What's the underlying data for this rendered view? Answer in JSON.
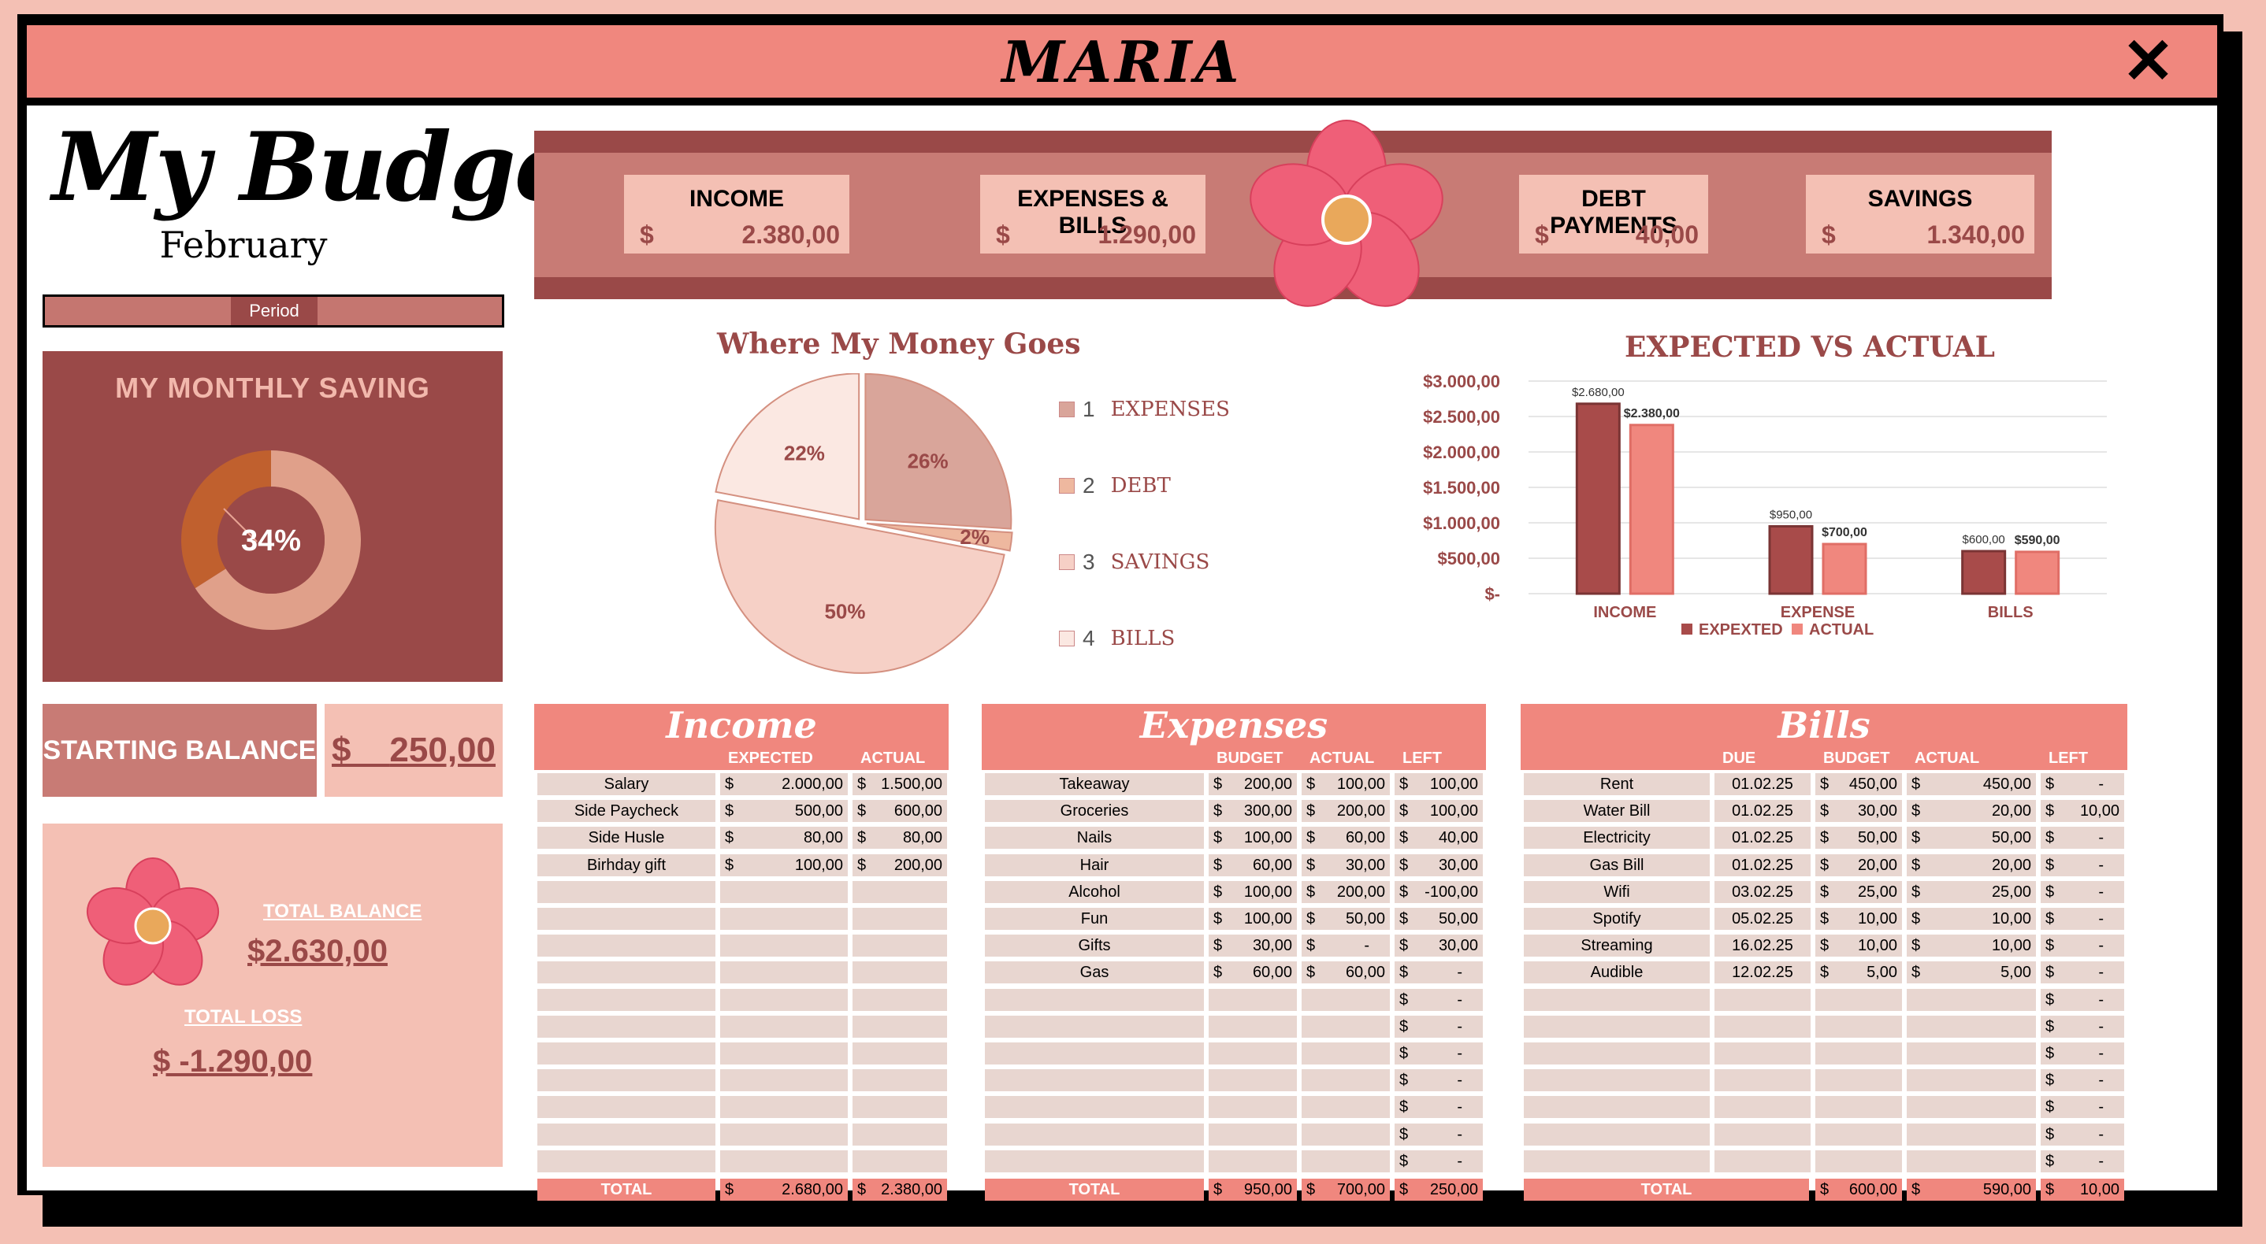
{
  "window": {
    "title": "MARIA",
    "close": "✕"
  },
  "header": {
    "title": "My Budget",
    "month": "February",
    "period_label": "Period"
  },
  "monthly_saving": {
    "title": "MY MONTHLY SAVING",
    "percent": "34%",
    "fraction": 0.34
  },
  "starting_balance": {
    "label": "STARTING BALANCE",
    "currency": "$",
    "value": "250,00"
  },
  "totals": {
    "balance_label": "TOTAL BALANCE",
    "balance_value": "$2.630,00",
    "loss_label": "TOTAL LOSS",
    "loss_value": "$ -1.290,00"
  },
  "kpis": [
    {
      "label": "INCOME",
      "currency": "$",
      "value": "2.380,00"
    },
    {
      "label": "EXPENSES & BILLS",
      "currency": "$",
      "value": "1.290,00"
    },
    {
      "label": "DEBT PAYMENTS",
      "currency": "$",
      "value": "40,00"
    },
    {
      "label": "SAVINGS",
      "currency": "$",
      "value": "1.340,00"
    }
  ],
  "colors": {
    "accent": "#f0877e",
    "dark": "#9a4948",
    "mid": "#c87b75",
    "light": "#f4c0b4",
    "cell": "#e8d6d0"
  },
  "chart_data": [
    {
      "type": "pie",
      "title": "Where My Money Goes",
      "categories": [
        "EXPENSES",
        "DEBT",
        "SAVINGS",
        "BILLS"
      ],
      "legend_numbers": [
        "1",
        "2",
        "3",
        "4"
      ],
      "values": [
        26,
        2,
        50,
        22
      ],
      "labels": [
        "26%",
        "2%",
        "50%",
        "22%"
      ],
      "colors": [
        "#d9a59a",
        "#eeb89f",
        "#f6d0c6",
        "#fbe8e2"
      ],
      "legend": "right"
    },
    {
      "type": "bar",
      "title": "EXPECTED VS ACTUAL",
      "categories": [
        "INCOME",
        "EXPENSE",
        "BILLS"
      ],
      "series": [
        {
          "name": "EXPEXTED",
          "values": [
            2680,
            950,
            600
          ],
          "labels": [
            "$2.680,00",
            "$950,00",
            "$600,00"
          ],
          "color": "#a84b4a"
        },
        {
          "name": "ACTUAL",
          "values": [
            2380,
            700,
            590
          ],
          "labels": [
            "$2.380,00",
            "$700,00",
            "$590,00"
          ],
          "color": "#f0877e"
        }
      ],
      "yticks": [
        "$-",
        "$500,00",
        "$1.000,00",
        "$1.500,00",
        "$2.000,00",
        "$2.500,00",
        "$3.000,00"
      ],
      "ylim": [
        0,
        3000
      ],
      "grid": true,
      "legend": "bottom"
    }
  ],
  "income": {
    "title": "Income",
    "columns": [
      "EXPECTED",
      "ACTUAL"
    ],
    "rows": [
      {
        "name": "Salary",
        "expected": "2.000,00",
        "actual": "1.500,00"
      },
      {
        "name": "Side Paycheck",
        "expected": "500,00",
        "actual": "600,00"
      },
      {
        "name": "Side Husle",
        "expected": "80,00",
        "actual": "80,00"
      },
      {
        "name": "Birhday gift",
        "expected": "100,00",
        "actual": "200,00"
      }
    ],
    "total": {
      "label": "TOTAL",
      "expected": "2.680,00",
      "actual": "2.380,00"
    }
  },
  "expenses": {
    "title": "Expenses",
    "columns": [
      "BUDGET",
      "ACTUAL",
      "LEFT"
    ],
    "rows": [
      {
        "name": "Takeaway",
        "budget": "200,00",
        "actual": "100,00",
        "left": "100,00"
      },
      {
        "name": "Groceries",
        "budget": "300,00",
        "actual": "200,00",
        "left": "100,00"
      },
      {
        "name": "Nails",
        "budget": "100,00",
        "actual": "60,00",
        "left": "40,00"
      },
      {
        "name": "Hair",
        "budget": "60,00",
        "actual": "30,00",
        "left": "30,00"
      },
      {
        "name": "Alcohol",
        "budget": "100,00",
        "actual": "200,00",
        "left": "-100,00"
      },
      {
        "name": "Fun",
        "budget": "100,00",
        "actual": "50,00",
        "left": "50,00"
      },
      {
        "name": "Gifts",
        "budget": "30,00",
        "actual": "-",
        "left": "30,00"
      },
      {
        "name": "Gas",
        "budget": "60,00",
        "actual": "60,00",
        "left": "-"
      }
    ],
    "total": {
      "label": "TOTAL",
      "budget": "950,00",
      "actual": "700,00",
      "left": "250,00"
    }
  },
  "bills": {
    "title": "Bills",
    "columns": [
      "DUE",
      "BUDGET",
      "ACTUAL",
      "LEFT"
    ],
    "rows": [
      {
        "name": "Rent",
        "due": "01.02.25",
        "budget": "450,00",
        "actual": "450,00",
        "left": "-"
      },
      {
        "name": "Water Bill",
        "due": "01.02.25",
        "budget": "30,00",
        "actual": "20,00",
        "left": "10,00"
      },
      {
        "name": "Electricity",
        "due": "01.02.25",
        "budget": "50,00",
        "actual": "50,00",
        "left": "-"
      },
      {
        "name": "Gas Bill",
        "due": "01.02.25",
        "budget": "20,00",
        "actual": "20,00",
        "left": "-"
      },
      {
        "name": "Wifi",
        "due": "03.02.25",
        "budget": "25,00",
        "actual": "25,00",
        "left": "-"
      },
      {
        "name": "Spotify",
        "due": "05.02.25",
        "budget": "10,00",
        "actual": "10,00",
        "left": "-"
      },
      {
        "name": "Streaming",
        "due": "16.02.25",
        "budget": "10,00",
        "actual": "10,00",
        "left": "-"
      },
      {
        "name": "Audible",
        "due": "12.02.25",
        "budget": "5,00",
        "actual": "5,00",
        "left": "-"
      }
    ],
    "total": {
      "label": "TOTAL",
      "budget": "600,00",
      "actual": "590,00",
      "left": "10,00"
    }
  },
  "currency": "$",
  "dash": "-"
}
